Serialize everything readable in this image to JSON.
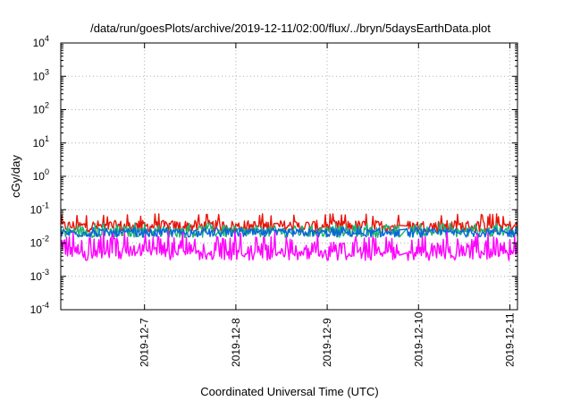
{
  "chart_data": {
    "type": "line",
    "title": "/data/run/goesPlots/archive/2019-12-11/02:00/flux/../bryn/5daysEarthData.plot",
    "xlabel": "Coordinated Universal Time (UTC)",
    "ylabel": "cGy/day",
    "yscale": "log",
    "ylim": [
      0.0001,
      10000
    ],
    "y_ticks": [
      {
        "value": 0.0001,
        "base": "10",
        "exp": "-4"
      },
      {
        "value": 0.001,
        "base": "10",
        "exp": "-3"
      },
      {
        "value": 0.01,
        "base": "10",
        "exp": "-2"
      },
      {
        "value": 0.1,
        "base": "10",
        "exp": "-1"
      },
      {
        "value": 1,
        "base": "10",
        "exp": "0"
      },
      {
        "value": 10,
        "base": "10",
        "exp": "1"
      },
      {
        "value": 100,
        "base": "10",
        "exp": "2"
      },
      {
        "value": 1000,
        "base": "10",
        "exp": "3"
      },
      {
        "value": 10000,
        "base": "10",
        "exp": "4"
      }
    ],
    "xlim": [
      "2019-12-06T02:00",
      "2019-12-11T02:00"
    ],
    "x_ticks": [
      "2019-12-7",
      "2019-12-8",
      "2019-12-9",
      "2019-12-10",
      "2019-12-11"
    ],
    "grid": true,
    "legend": "none",
    "data_gap": [
      "2019-12-09T19:00",
      "2019-12-09T21:00"
    ],
    "series": [
      {
        "color": "#e8140a",
        "level": 0.032,
        "spread": 0.35,
        "peak": 0.075
      },
      {
        "color": "#1cb46e",
        "level": 0.022,
        "spread": 0.35,
        "peak": 0.04
      },
      {
        "color": "#0a64dc",
        "level": 0.02,
        "spread": 0.25,
        "peak": 0.03
      },
      {
        "color": "#ff00ff",
        "level": 0.008,
        "spread": 0.6,
        "peak": 0.022,
        "min": 0.003
      }
    ]
  }
}
